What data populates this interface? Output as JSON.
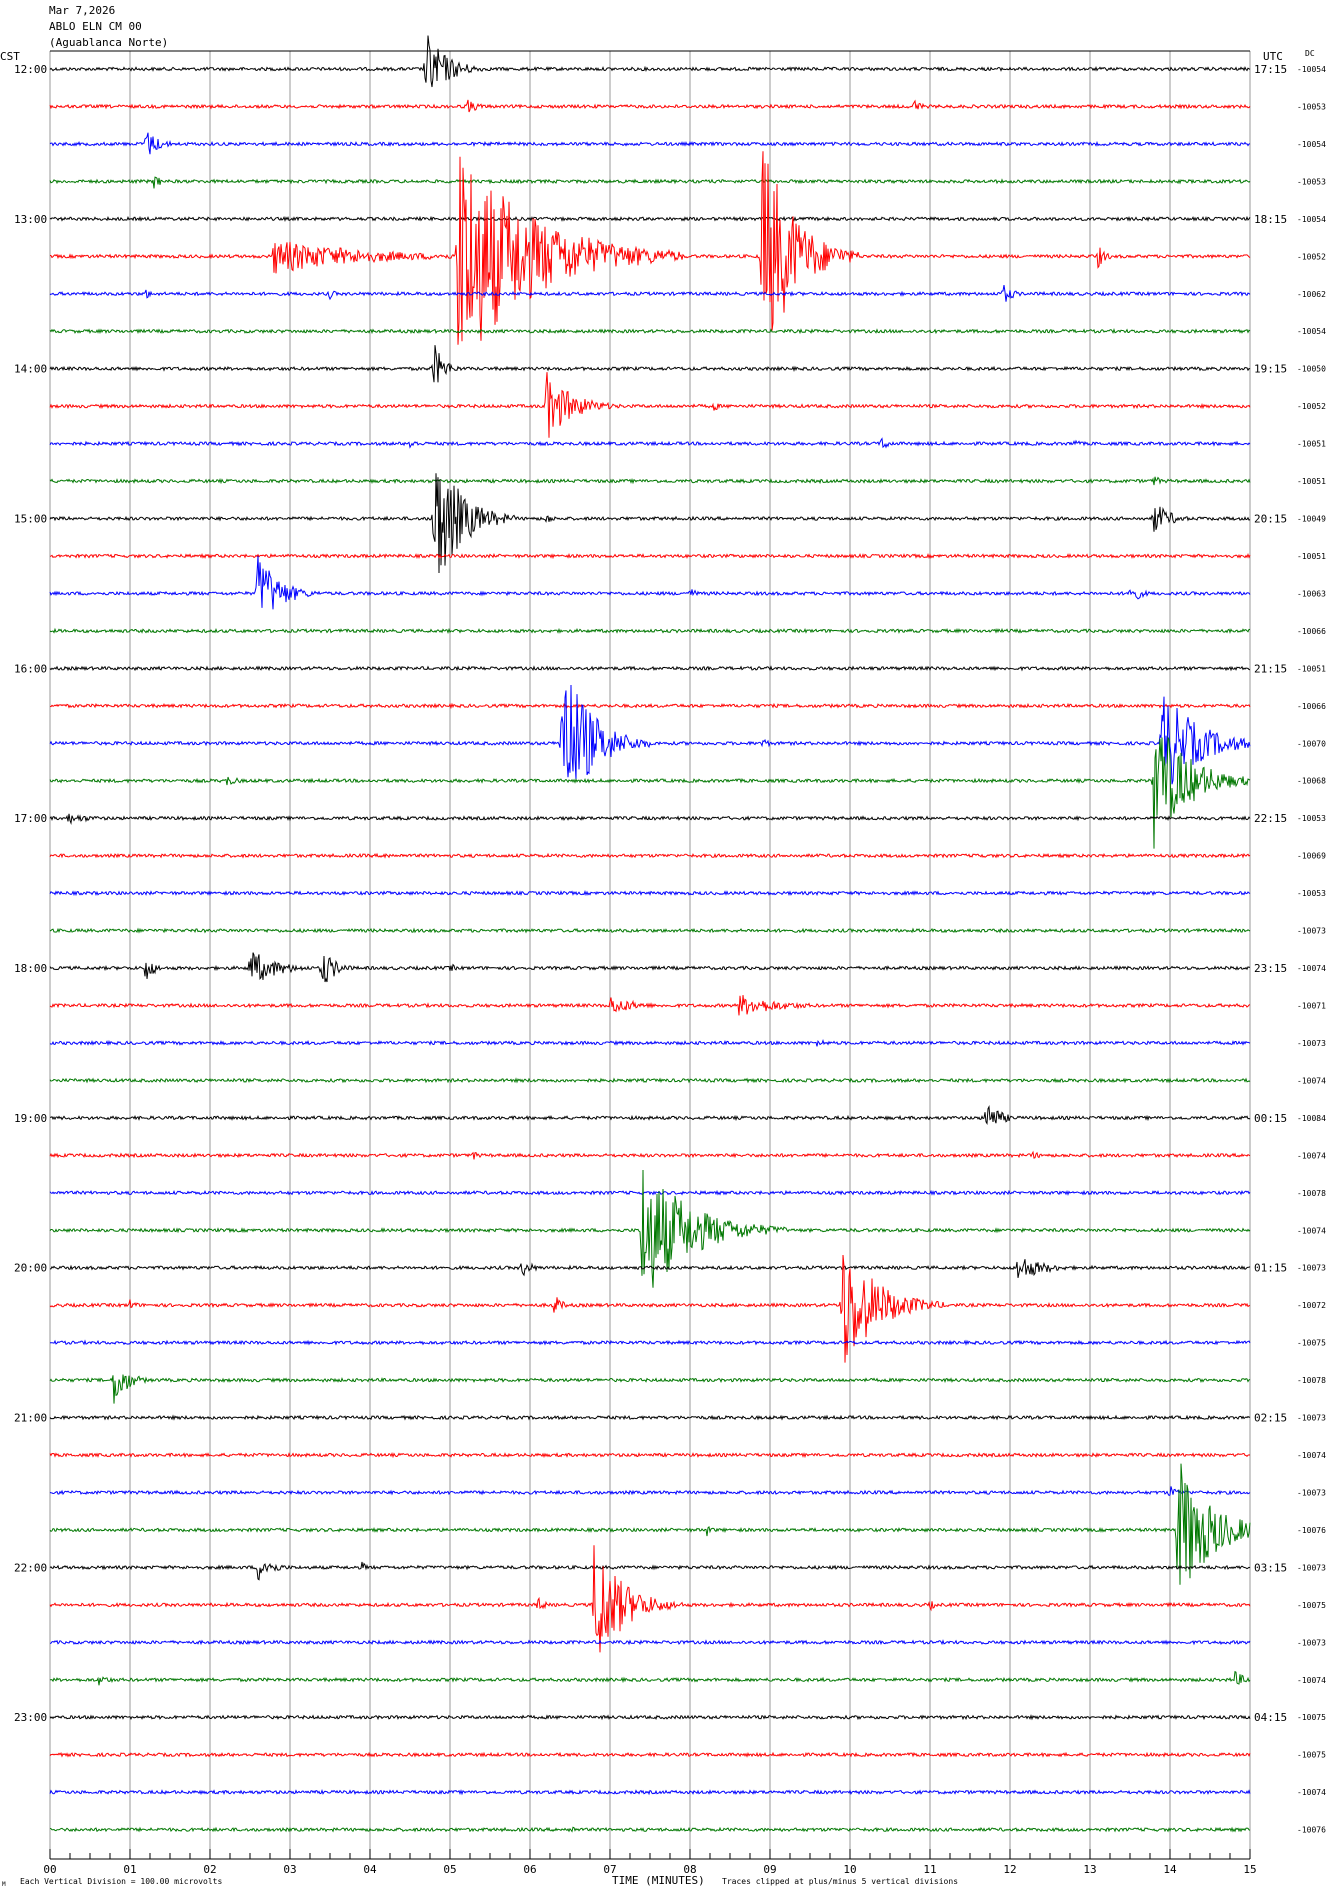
{
  "header": {
    "date": "Mar 7,2026",
    "station": "ABLO ELN CM 00",
    "site": "(Aguablanca Norte)",
    "left_tz": "CST",
    "right_tz": "UTC",
    "dc_label": "DC"
  },
  "footer": {
    "xlabel": "TIME (MINUTES)",
    "scale_note": "Each Vertical Division =  100.00 microvolts",
    "clip_note": "Traces clipped at plus/minus 5 vertical divisions",
    "corner_mark": "M"
  },
  "chart_data": {
    "type": "helicorder",
    "x_range": [
      0,
      15
    ],
    "x_ticks": [
      "00",
      "01",
      "02",
      "03",
      "04",
      "05",
      "06",
      "07",
      "08",
      "09",
      "10",
      "11",
      "12",
      "13",
      "14",
      "15"
    ],
    "trace_colors": [
      "#000000",
      "#ff0000",
      "#0000ff",
      "#007700"
    ],
    "cst_labels": [
      "12:00",
      "13:00",
      "14:00",
      "15:00",
      "16:00",
      "17:00",
      "18:00",
      "19:00",
      "20:00",
      "21:00",
      "22:00",
      "23:00"
    ],
    "utc_labels": [
      "17:15",
      "18:15",
      "19:15",
      "20:15",
      "21:15",
      "22:15",
      "23:15",
      "00:15",
      "01:15",
      "02:15",
      "03:15",
      "04:15"
    ],
    "dc_values": [
      "-10054",
      "-10053",
      "-10054",
      "-10053",
      "-10054",
      "-10052",
      "-10062",
      "-10054",
      "-10050",
      "-10052",
      "-10051",
      "-10051",
      "-10049",
      "-10051",
      "-10063",
      "-10066",
      "-10051",
      "-10066",
      "-10070",
      "-10068",
      "-10053",
      "-10069",
      "-10053",
      "-10073",
      "-10074",
      "-10071",
      "-10073",
      "-10074",
      "-10084",
      "-10074",
      "-10078",
      "-10074",
      "-10073",
      "-10072",
      "-10075",
      "-10078",
      "-10073",
      "-10074",
      "-10073",
      "-10076",
      "-10073",
      "-10075",
      "-10073",
      "-10074",
      "-10075",
      "-10075",
      "-10074",
      "-10076"
    ],
    "events": [
      {
        "line": 0,
        "minute": 4.7,
        "amp": 38,
        "dur": 0.8
      },
      {
        "line": 1,
        "minute": 5.2,
        "amp": 8,
        "dur": 0.5
      },
      {
        "line": 1,
        "minute": 10.8,
        "amp": 8,
        "dur": 0.3
      },
      {
        "line": 2,
        "minute": 1.2,
        "amp": 16,
        "dur": 0.5
      },
      {
        "line": 3,
        "minute": 1.3,
        "amp": 8,
        "dur": 0.3
      },
      {
        "line": 5,
        "minute": 5.1,
        "amp": 120,
        "dur": 2.8
      },
      {
        "line": 5,
        "minute": 8.9,
        "amp": 120,
        "dur": 1.2
      },
      {
        "line": 5,
        "minute": 2.8,
        "amp": 18,
        "dur": 3.5
      },
      {
        "line": 5,
        "minute": 13.1,
        "amp": 12,
        "dur": 0.3
      },
      {
        "line": 6,
        "minute": 1.2,
        "amp": 6,
        "dur": 0.2
      },
      {
        "line": 6,
        "minute": 3.5,
        "amp": 6,
        "dur": 0.2
      },
      {
        "line": 6,
        "minute": 11.9,
        "amp": 12,
        "dur": 0.4
      },
      {
        "line": 8,
        "minute": 4.8,
        "amp": 26,
        "dur": 0.4
      },
      {
        "line": 9,
        "minute": 6.2,
        "amp": 36,
        "dur": 1.0
      },
      {
        "line": 9,
        "minute": 8.3,
        "amp": 6,
        "dur": 0.2
      },
      {
        "line": 10,
        "minute": 4.5,
        "amp": 6,
        "dur": 0.3
      },
      {
        "line": 10,
        "minute": 10.4,
        "amp": 8,
        "dur": 0.3
      },
      {
        "line": 10,
        "minute": 12.8,
        "amp": 6,
        "dur": 0.2
      },
      {
        "line": 11,
        "minute": 13.8,
        "amp": 6,
        "dur": 0.3
      },
      {
        "line": 12,
        "minute": 4.8,
        "amp": 80,
        "dur": 1.0
      },
      {
        "line": 12,
        "minute": 13.8,
        "amp": 18,
        "dur": 0.6
      },
      {
        "line": 12,
        "minute": 6.2,
        "amp": 6,
        "dur": 0.3
      },
      {
        "line": 14,
        "minute": 2.6,
        "amp": 42,
        "dur": 0.8
      },
      {
        "line": 14,
        "minute": 13.5,
        "amp": 12,
        "dur": 0.4
      },
      {
        "line": 14,
        "minute": 8.0,
        "amp": 6,
        "dur": 0.3
      },
      {
        "line": 18,
        "minute": 6.4,
        "amp": 90,
        "dur": 1.1
      },
      {
        "line": 18,
        "minute": 8.9,
        "amp": 6,
        "dur": 0.3
      },
      {
        "line": 18,
        "minute": 13.9,
        "amp": 55,
        "dur": 1.4
      },
      {
        "line": 19,
        "minute": 13.8,
        "amp": 70,
        "dur": 1.3
      },
      {
        "line": 19,
        "minute": 2.2,
        "amp": 6,
        "dur": 0.5
      },
      {
        "line": 20,
        "minute": 0.2,
        "amp": 6,
        "dur": 1.0
      },
      {
        "line": 21,
        "minute": 4.2,
        "amp": 6,
        "dur": 0.2
      },
      {
        "line": 21,
        "minute": 11.6,
        "amp": 6,
        "dur": 0.2
      },
      {
        "line": 24,
        "minute": 1.2,
        "amp": 16,
        "dur": 0.3
      },
      {
        "line": 24,
        "minute": 2.5,
        "amp": 20,
        "dur": 1.0
      },
      {
        "line": 24,
        "minute": 3.4,
        "amp": 22,
        "dur": 0.5
      },
      {
        "line": 24,
        "minute": 5.0,
        "amp": 6,
        "dur": 0.2
      },
      {
        "line": 25,
        "minute": 7.0,
        "amp": 10,
        "dur": 1.0
      },
      {
        "line": 25,
        "minute": 8.6,
        "amp": 12,
        "dur": 1.6
      },
      {
        "line": 26,
        "minute": 9.6,
        "amp": 6,
        "dur": 0.3
      },
      {
        "line": 28,
        "minute": 11.7,
        "amp": 20,
        "dur": 0.5
      },
      {
        "line": 29,
        "minute": 5.3,
        "amp": 6,
        "dur": 0.2
      },
      {
        "line": 29,
        "minute": 12.3,
        "amp": 6,
        "dur": 0.2
      },
      {
        "line": 31,
        "minute": 7.4,
        "amp": 75,
        "dur": 1.8
      },
      {
        "line": 32,
        "minute": 5.9,
        "amp": 10,
        "dur": 0.4
      },
      {
        "line": 32,
        "minute": 12.1,
        "amp": 14,
        "dur": 1.0
      },
      {
        "line": 33,
        "minute": 6.3,
        "amp": 12,
        "dur": 0.3
      },
      {
        "line": 33,
        "minute": 1.0,
        "amp": 6,
        "dur": 0.3
      },
      {
        "line": 33,
        "minute": 9.9,
        "amp": 70,
        "dur": 1.3
      },
      {
        "line": 35,
        "minute": 0.8,
        "amp": 28,
        "dur": 0.5
      },
      {
        "line": 38,
        "minute": 14.0,
        "amp": 8,
        "dur": 0.3
      },
      {
        "line": 39,
        "minute": 14.1,
        "amp": 75,
        "dur": 1.3
      },
      {
        "line": 39,
        "minute": 8.2,
        "amp": 8,
        "dur": 0.2
      },
      {
        "line": 40,
        "minute": 2.6,
        "amp": 14,
        "dur": 0.6
      },
      {
        "line": 40,
        "minute": 3.9,
        "amp": 6,
        "dur": 0.2
      },
      {
        "line": 41,
        "minute": 6.8,
        "amp": 68,
        "dur": 1.1
      },
      {
        "line": 41,
        "minute": 6.1,
        "amp": 8,
        "dur": 0.3
      },
      {
        "line": 41,
        "minute": 11.0,
        "amp": 6,
        "dur": 0.2
      },
      {
        "line": 43,
        "minute": 0.6,
        "amp": 6,
        "dur": 0.5
      },
      {
        "line": 43,
        "minute": 14.8,
        "amp": 10,
        "dur": 0.4
      },
      {
        "line": 47,
        "minute": 6.5,
        "amp": 6,
        "dur": 0.2
      }
    ]
  }
}
